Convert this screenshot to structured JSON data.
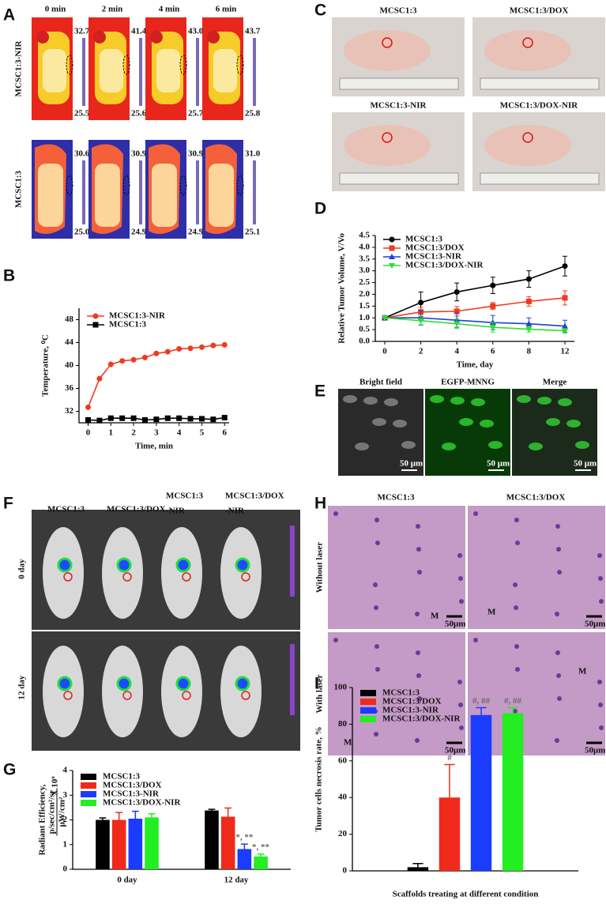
{
  "panels": {
    "labels": [
      "A",
      "B",
      "C",
      "D",
      "E",
      "F",
      "G",
      "H",
      "I"
    ]
  },
  "thermal": {
    "times": [
      "0 min",
      "2 min",
      "4 min",
      "6 min"
    ],
    "groups": [
      {
        "name": "MCSC1:3-NIR",
        "scales": [
          {
            "max": "32.7",
            "min": "25.5"
          },
          {
            "max": "41.4",
            "min": "25.6"
          },
          {
            "max": "43.0",
            "min": "25.7"
          },
          {
            "max": "43.7",
            "min": "25.8"
          }
        ]
      },
      {
        "name": "MCSC1:3",
        "scales": [
          {
            "max": "30.6",
            "min": "25.0"
          },
          {
            "max": "30.9",
            "min": "24.9"
          },
          {
            "max": "30.9",
            "min": "24.9"
          },
          {
            "max": "31.0",
            "min": "25.1"
          }
        ]
      }
    ]
  },
  "tumor_photos": {
    "labels": [
      "MCSC1:3",
      "MCSC1:3/DOX",
      "MCSC1:3-NIR",
      "MCSC1:3/DOX-NIR"
    ]
  },
  "fluorescence": {
    "labels": [
      "Bright field",
      "EGFP-MNNG",
      "Merge"
    ],
    "scale_bars": [
      "50 μm",
      "50 μm",
      "50 μm"
    ]
  },
  "ivis": {
    "columns": [
      [
        "MCSC1:3"
      ],
      [
        "MCSC1:3/DOX"
      ],
      [
        "MCSC1:3",
        "-NIR"
      ],
      [
        "MCSC1:3/DOX",
        "-NIR"
      ]
    ],
    "rows": [
      "0 day",
      "12 day"
    ]
  },
  "histology": {
    "columns": [
      "MCSC1:3",
      "MCSC1:3/DOX"
    ],
    "rows": [
      "Without laser",
      "With laser"
    ],
    "markers": [
      "M",
      "M",
      "M",
      "M"
    ],
    "scale_bars": [
      "50μm",
      "50μm",
      "50μm",
      "50μm"
    ]
  },
  "chart_data": [
    {
      "type": "line",
      "xlabel": "Time, min",
      "ylabel": "Temperature, ⁰C",
      "x": [
        0,
        0.5,
        1,
        1.5,
        2,
        2.5,
        3,
        3.5,
        4,
        4.5,
        5,
        5.5,
        6
      ],
      "series": [
        {
          "name": "MCSC1:3-NIR",
          "color": "#f03a20",
          "marker": "circle",
          "values": [
            32.7,
            37.7,
            40.2,
            40.8,
            41.0,
            41.4,
            42.1,
            42.4,
            42.9,
            43.0,
            43.2,
            43.5,
            43.6
          ]
        },
        {
          "name": "MCSC1:3",
          "color": "#000000",
          "marker": "square",
          "values": [
            30.5,
            30.4,
            30.8,
            30.8,
            30.8,
            30.5,
            30.6,
            30.8,
            30.8,
            30.7,
            30.7,
            30.6,
            30.9
          ]
        }
      ],
      "xlim": [
        -0.4,
        6.2
      ],
      "ylim": [
        30,
        50
      ],
      "xticks": [
        0,
        1,
        2,
        3,
        4,
        5,
        6
      ],
      "yticks": [
        32,
        36,
        40,
        44,
        48
      ],
      "legend": "upper left",
      "grid": false
    },
    {
      "type": "line",
      "xlabel": "Time, day",
      "ylabel": "Relative Tumor Volume, V/Vo",
      "categories": [
        "0",
        "2",
        "4",
        "6",
        "8",
        "12"
      ],
      "series": [
        {
          "name": "MCSC1:3",
          "color": "#000000",
          "marker": "circle",
          "values": [
            1,
            1.65,
            2.1,
            2.38,
            2.65,
            3.2
          ],
          "errors": [
            0,
            0.45,
            0.38,
            0.35,
            0.35,
            0.42
          ]
        },
        {
          "name": "MCSC1:3/DOX",
          "color": "#f03a20",
          "marker": "square",
          "values": [
            1,
            1.25,
            1.28,
            1.5,
            1.7,
            1.85
          ],
          "errors": [
            0,
            0.2,
            0.2,
            0.15,
            0.2,
            0.3
          ]
        },
        {
          "name": "MCSC1:3-NIR",
          "color": "#1f3fe0",
          "marker": "triangle",
          "values": [
            1,
            1.0,
            0.9,
            0.8,
            0.75,
            0.65
          ],
          "errors": [
            0,
            0.3,
            0.3,
            0.3,
            0.25,
            0.25
          ]
        },
        {
          "name": "MCSC1:3/DOX-NIR",
          "color": "#2be02b",
          "marker": "triangle-down",
          "values": [
            1,
            0.88,
            0.75,
            0.6,
            0.52,
            0.45
          ],
          "errors": [
            0,
            0.2,
            0.2,
            0.2,
            0.12,
            0.1
          ]
        }
      ],
      "ylim": [
        0,
        4.5
      ],
      "yticks": [
        {
          "value": 0,
          "label": "0.0"
        },
        0.5,
        {
          "value": 1,
          "label": "1.0"
        },
        1.5,
        {
          "value": 2,
          "label": "2.0"
        },
        2.5,
        {
          "value": 3,
          "label": "3.0"
        },
        3.5,
        {
          "value": 4,
          "label": "4.0"
        },
        4.5
      ],
      "legend": "upper left",
      "grid": false
    },
    {
      "type": "bar",
      "ylabel": [
        "Radiant Efficiency,",
        "p/sec/cm²/sr",
        "μW/cm²",
        "X 10⁹"
      ],
      "categories": [
        "0 day",
        "12 day"
      ],
      "series": [
        {
          "name": "MCSC1:3",
          "color": "#000000",
          "values": [
            2.0,
            2.38
          ],
          "errors": [
            0.08,
            0.05
          ],
          "annotations": [
            null,
            null
          ]
        },
        {
          "name": "MCSC1:3/DOX",
          "color": "#f02a1a",
          "values": [
            2.0,
            2.13
          ],
          "errors": [
            0.3,
            0.35
          ],
          "annotations": [
            null,
            null
          ]
        },
        {
          "name": "MCSC1:3-NIR",
          "color": "#1a3cff",
          "values": [
            2.05,
            0.82
          ],
          "errors": [
            0.3,
            0.2
          ],
          "annotations": [
            null,
            "*, **"
          ]
        },
        {
          "name": "MCSC1:3/DOX-NIR",
          "color": "#22ee22",
          "values": [
            2.1,
            0.52
          ],
          "errors": [
            0.15,
            0.1
          ],
          "annotations": [
            null,
            "*, **"
          ]
        }
      ],
      "ylim": [
        0,
        4
      ],
      "yticks": [
        0,
        1,
        2,
        3,
        4
      ],
      "legend": "upper left",
      "grid": false
    },
    {
      "type": "bar",
      "xlabel": "Scaffolds treating at different condition",
      "ylabel": "Tumor cells necrosis rate, %",
      "categories": [
        null
      ],
      "series": [
        {
          "name": "MCSC1:3",
          "color": "#000000",
          "values": [
            2
          ],
          "errors": [
            2
          ],
          "annotations": [
            null
          ]
        },
        {
          "name": "MCSC1:3/DOX",
          "color": "#f02a1a",
          "values": [
            40
          ],
          "errors": [
            18
          ],
          "annotations": [
            "#"
          ]
        },
        {
          "name": "MCSC1:3-NIR",
          "color": "#1a3cff",
          "values": [
            85
          ],
          "errors": [
            4
          ],
          "annotations": [
            "#, ##"
          ]
        },
        {
          "name": "MCSC1:3/DOX-NIR",
          "color": "#22ee22",
          "values": [
            86
          ],
          "errors": [
            3
          ],
          "annotations": [
            "#, ##"
          ]
        }
      ],
      "ylim": [
        0,
        100
      ],
      "yticks": [
        0,
        20,
        40,
        60,
        80,
        100
      ],
      "legend": "upper left",
      "grid": false
    }
  ]
}
